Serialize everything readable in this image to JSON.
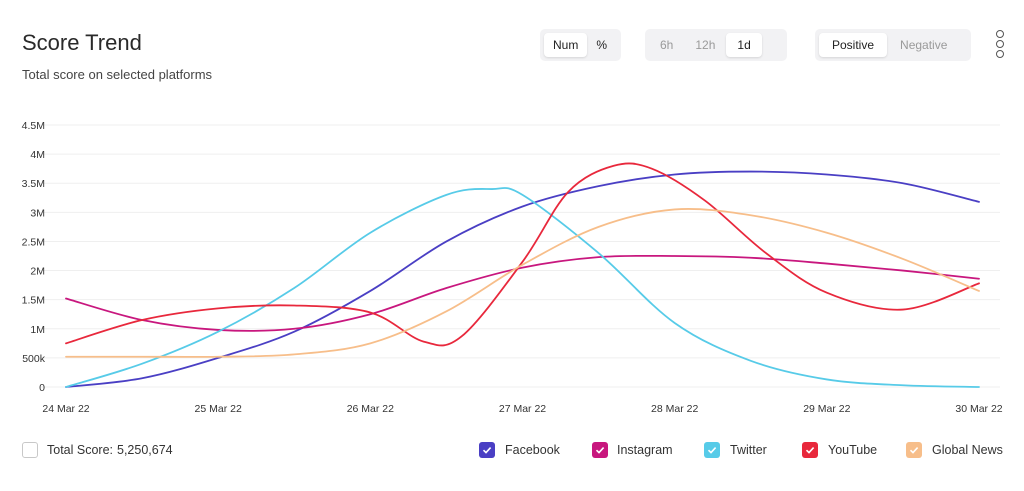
{
  "header": {
    "title": "Score Trend",
    "subtitle": "Total score on selected platforms"
  },
  "controls": {
    "unit": {
      "options": [
        "Num",
        "%"
      ],
      "selected": "Num"
    },
    "range": {
      "options": [
        "6h",
        "12h",
        "1d"
      ],
      "selected": "1d"
    },
    "sentiment": {
      "options": [
        "Positive",
        "Negative"
      ],
      "selected": "Positive"
    }
  },
  "footer": {
    "total_label": "Total Score:",
    "total_value": "5,250,674"
  },
  "legend": [
    {
      "name": "Facebook",
      "color": "#4a3fc4"
    },
    {
      "name": "Instagram",
      "color": "#c8177e"
    },
    {
      "name": "Twitter",
      "color": "#57cbe8"
    },
    {
      "name": "YouTube",
      "color": "#e8283c"
    },
    {
      "name": "Global News",
      "color": "#f7be8a"
    }
  ],
  "chart_data": {
    "type": "line",
    "title": "Score Trend",
    "subtitle": "Total score on selected platforms",
    "xlabel": "",
    "ylabel": "",
    "categories": [
      "24 Mar 22",
      "25 Mar 22",
      "26 Mar 22",
      "27 Mar 22",
      "28 Mar 22",
      "29 Mar 22",
      "30 Mar 22"
    ],
    "y_ticks": [
      {
        "value": 0,
        "label": "0"
      },
      {
        "value": 500000,
        "label": "500k"
      },
      {
        "value": 1000000,
        "label": "1M"
      },
      {
        "value": 1500000,
        "label": "1.5M"
      },
      {
        "value": 2000000,
        "label": "2M"
      },
      {
        "value": 2500000,
        "label": "2.5M"
      },
      {
        "value": 3000000,
        "label": "3M"
      },
      {
        "value": 3500000,
        "label": "3.5M"
      },
      {
        "value": 4000000,
        "label": "4M"
      },
      {
        "value": 4500000,
        "label": "4.5M"
      }
    ],
    "ylim": [
      0,
      4500000
    ],
    "grid": true,
    "legend_position": "bottom-right",
    "series": [
      {
        "name": "Facebook",
        "color": "#4a3fc4",
        "points": [
          [
            0,
            0
          ],
          [
            0.5,
            150000
          ],
          [
            1,
            500000
          ],
          [
            1.5,
            950000
          ],
          [
            2,
            1650000
          ],
          [
            2.5,
            2500000
          ],
          [
            3,
            3100000
          ],
          [
            3.5,
            3450000
          ],
          [
            4,
            3650000
          ],
          [
            4.5,
            3700000
          ],
          [
            5,
            3650000
          ],
          [
            5.5,
            3500000
          ],
          [
            6,
            3180000
          ]
        ]
      },
      {
        "name": "Instagram",
        "color": "#c8177e",
        "points": [
          [
            0,
            1520000
          ],
          [
            0.5,
            1150000
          ],
          [
            1,
            980000
          ],
          [
            1.5,
            1000000
          ],
          [
            2,
            1250000
          ],
          [
            2.5,
            1700000
          ],
          [
            3,
            2050000
          ],
          [
            3.5,
            2230000
          ],
          [
            4,
            2250000
          ],
          [
            4.5,
            2220000
          ],
          [
            5,
            2120000
          ],
          [
            5.5,
            2000000
          ],
          [
            6,
            1860000
          ]
        ]
      },
      {
        "name": "Twitter",
        "color": "#57cbe8",
        "points": [
          [
            0,
            0
          ],
          [
            0.5,
            400000
          ],
          [
            1,
            950000
          ],
          [
            1.5,
            1700000
          ],
          [
            2,
            2650000
          ],
          [
            2.5,
            3300000
          ],
          [
            2.8,
            3400000
          ],
          [
            3,
            3300000
          ],
          [
            3.5,
            2300000
          ],
          [
            4,
            1100000
          ],
          [
            4.5,
            450000
          ],
          [
            5,
            130000
          ],
          [
            5.5,
            30000
          ],
          [
            6,
            0
          ]
        ]
      },
      {
        "name": "YouTube",
        "color": "#e8283c",
        "points": [
          [
            0,
            750000
          ],
          [
            0.5,
            1150000
          ],
          [
            1,
            1350000
          ],
          [
            1.5,
            1400000
          ],
          [
            2,
            1280000
          ],
          [
            2.35,
            780000
          ],
          [
            2.6,
            870000
          ],
          [
            3,
            2150000
          ],
          [
            3.3,
            3350000
          ],
          [
            3.6,
            3800000
          ],
          [
            3.85,
            3750000
          ],
          [
            4.2,
            3200000
          ],
          [
            4.6,
            2300000
          ],
          [
            5,
            1620000
          ],
          [
            5.5,
            1330000
          ],
          [
            6,
            1780000
          ]
        ]
      },
      {
        "name": "Global News",
        "color": "#f7be8a",
        "points": [
          [
            0,
            520000
          ],
          [
            0.5,
            520000
          ],
          [
            1,
            520000
          ],
          [
            1.5,
            560000
          ],
          [
            2,
            750000
          ],
          [
            2.5,
            1300000
          ],
          [
            3,
            2100000
          ],
          [
            3.5,
            2750000
          ],
          [
            4,
            3050000
          ],
          [
            4.5,
            2950000
          ],
          [
            5,
            2650000
          ],
          [
            5.5,
            2200000
          ],
          [
            6,
            1650000
          ]
        ]
      }
    ]
  }
}
